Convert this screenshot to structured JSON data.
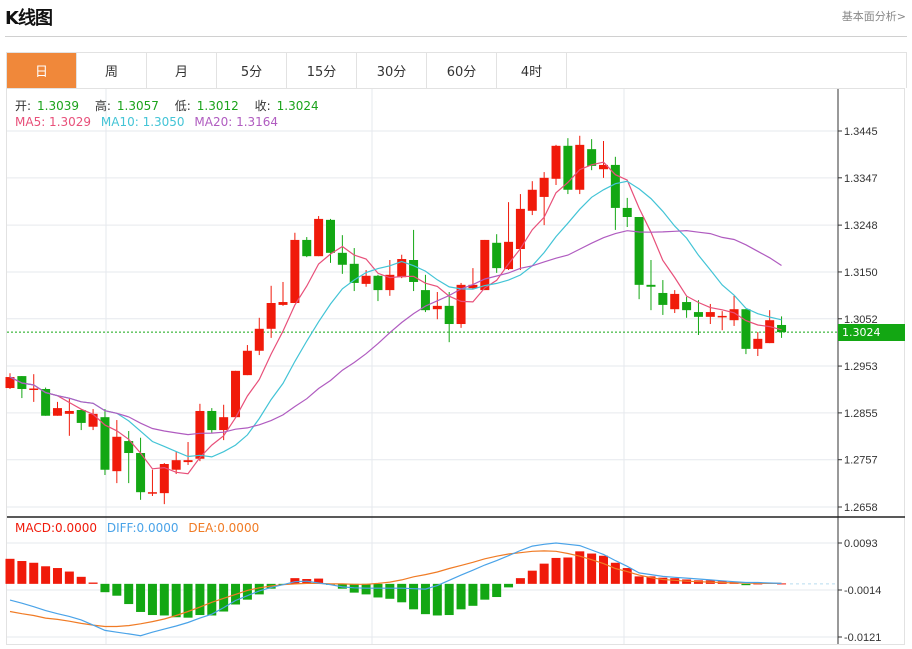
{
  "header": {
    "title": "K线图",
    "link": "基本面分析>"
  },
  "tabs": [
    {
      "label": "日",
      "active": true
    },
    {
      "label": "周"
    },
    {
      "label": "月"
    },
    {
      "label": "5分"
    },
    {
      "label": "15分"
    },
    {
      "label": "30分"
    },
    {
      "label": "60分"
    },
    {
      "label": "4时"
    }
  ],
  "ohlc_legend": {
    "open_label": "开:",
    "open": "1.3039",
    "high_label": "高:",
    "high": "1.3057",
    "low_label": "低:",
    "low": "1.3012",
    "close_label": "收:",
    "close": "1.3024"
  },
  "ma_legend": {
    "ma5": "MA5: 1.3029",
    "ma10": "MA10: 1.3050",
    "ma20": "MA20: 1.3164"
  },
  "macd_legend": {
    "macd": "MACD:0.0000",
    "diff": "DIFF:0.0000",
    "dea": "DEA:0.0000"
  },
  "current_price": "1.3024",
  "colors": {
    "up": "#f01a0a",
    "down": "#13a713",
    "ma5": "#e8507a",
    "ma10": "#43c4d6",
    "ma20": "#b05cc0",
    "diff": "#4aa3e8",
    "dea": "#f07b25",
    "active_tab": "#f0883a"
  },
  "chart_data": [
    {
      "type": "candlestick",
      "ylim": [
        1.2658,
        1.3445
      ],
      "yticks": [
        "1.3445",
        "1.3347",
        "1.3248",
        "1.3150",
        "1.3052",
        "1.2953",
        "1.2855",
        "1.2757",
        "1.2658"
      ],
      "grid": true,
      "ohlc": [
        [
          1.2907,
          1.2938,
          1.2905,
          1.293
        ],
        [
          1.2932,
          1.2932,
          1.2886,
          1.2905
        ],
        [
          1.2905,
          1.2936,
          1.2878,
          1.2906
        ],
        [
          1.2905,
          1.2908,
          1.2849,
          1.2849
        ],
        [
          1.2849,
          1.2878,
          1.2849,
          1.2865
        ],
        [
          1.2853,
          1.2886,
          1.2807,
          1.2859
        ],
        [
          1.2861,
          1.2863,
          1.2819,
          1.2834
        ],
        [
          1.2826,
          1.2863,
          1.2819,
          1.2853
        ],
        [
          1.2846,
          1.2863,
          1.2725,
          1.2736
        ],
        [
          1.2733,
          1.284,
          1.2708,
          1.2805
        ],
        [
          1.2796,
          1.2817,
          1.2708,
          1.2771
        ],
        [
          1.2771,
          1.2803,
          1.2673,
          1.2689
        ],
        [
          1.2687,
          1.2736,
          1.2681,
          1.2689
        ],
        [
          1.2687,
          1.275,
          1.2664,
          1.2748
        ],
        [
          1.2736,
          1.2773,
          1.2727,
          1.2756
        ],
        [
          1.2752,
          1.2794,
          1.2746,
          1.2756
        ],
        [
          1.2759,
          1.2874,
          1.2754,
          1.2859
        ],
        [
          1.2859,
          1.2865,
          1.2813,
          1.2819
        ],
        [
          1.2819,
          1.2872,
          1.2798,
          1.2846
        ],
        [
          1.2846,
          1.2943,
          1.2846,
          1.2943
        ],
        [
          1.2934,
          1.2997,
          1.2934,
          1.2985
        ],
        [
          1.2985,
          1.3054,
          1.2976,
          1.3031
        ],
        [
          1.3031,
          1.3121,
          1.3012,
          1.3085
        ],
        [
          1.3081,
          1.3129,
          1.3079,
          1.3087
        ],
        [
          1.3085,
          1.3232,
          1.3085,
          1.3217
        ],
        [
          1.3217,
          1.3223,
          1.3181,
          1.3183
        ],
        [
          1.3183,
          1.3267,
          1.3183,
          1.3261
        ],
        [
          1.3259,
          1.3261,
          1.3169,
          1.319
        ],
        [
          1.319,
          1.3227,
          1.3146,
          1.3165
        ],
        [
          1.3167,
          1.32,
          1.311,
          1.3127
        ],
        [
          1.3125,
          1.3154,
          1.3119,
          1.3142
        ],
        [
          1.3142,
          1.3144,
          1.3089,
          1.3112
        ],
        [
          1.3112,
          1.3175,
          1.31,
          1.3144
        ],
        [
          1.3139,
          1.3186,
          1.3137,
          1.3177
        ],
        [
          1.3175,
          1.3238,
          1.311,
          1.3129
        ],
        [
          1.3112,
          1.3144,
          1.3066,
          1.307
        ],
        [
          1.3072,
          1.3108,
          1.3051,
          1.3079
        ],
        [
          1.3079,
          1.3108,
          1.3003,
          1.3041
        ],
        [
          1.3041,
          1.3127,
          1.3033,
          1.3123
        ],
        [
          1.3116,
          1.3158,
          1.3114,
          1.3123
        ],
        [
          1.3112,
          1.3217,
          1.3112,
          1.3217
        ],
        [
          1.3211,
          1.3229,
          1.3148,
          1.3158
        ],
        [
          1.3156,
          1.3296,
          1.3154,
          1.3213
        ],
        [
          1.3198,
          1.3313,
          1.3154,
          1.3282
        ],
        [
          1.3278,
          1.334,
          1.3269,
          1.3322
        ],
        [
          1.3307,
          1.3359,
          1.3248,
          1.3347
        ],
        [
          1.3345,
          1.3416,
          1.3332,
          1.3414
        ],
        [
          1.3414,
          1.343,
          1.3313,
          1.3322
        ],
        [
          1.3322,
          1.3435,
          1.3313,
          1.3416
        ],
        [
          1.3407,
          1.3428,
          1.3363,
          1.3372
        ],
        [
          1.3365,
          1.3424,
          1.3347,
          1.3374
        ],
        [
          1.3374,
          1.3391,
          1.3238,
          1.3284
        ],
        [
          1.3284,
          1.3305,
          1.3244,
          1.3265
        ],
        [
          1.3265,
          1.3265,
          1.3093,
          1.3123
        ],
        [
          1.3123,
          1.3175,
          1.307,
          1.3119
        ],
        [
          1.3106,
          1.3133,
          1.306,
          1.3081
        ],
        [
          1.3072,
          1.3112,
          1.3064,
          1.3104
        ],
        [
          1.3087,
          1.3098,
          1.3054,
          1.307
        ],
        [
          1.3066,
          1.3091,
          1.3018,
          1.3056
        ],
        [
          1.3056,
          1.3083,
          1.3041,
          1.3066
        ],
        [
          1.3056,
          1.3068,
          1.3028,
          1.3058
        ],
        [
          1.3049,
          1.31,
          1.3037,
          1.3072
        ],
        [
          1.3072,
          1.3072,
          1.2978,
          1.2989
        ],
        [
          1.2989,
          1.3024,
          1.2974,
          1.301
        ],
        [
          1.3001,
          1.307,
          1.3001,
          1.3049
        ],
        [
          1.3039,
          1.3057,
          1.3012,
          1.3024
        ]
      ],
      "ma_periods": [
        5,
        10,
        20
      ]
    },
    {
      "type": "bar+line",
      "ylim": [
        -0.0121,
        0.0093
      ],
      "yticks": [
        "0.0093",
        "-0.0014",
        "-0.0121"
      ],
      "macd": [
        0.0057,
        0.0052,
        0.0048,
        0.004,
        0.0036,
        0.0028,
        0.0016,
        0.0003,
        -0.0019,
        -0.0027,
        -0.0046,
        -0.0064,
        -0.0071,
        -0.0072,
        -0.0076,
        -0.0077,
        -0.0071,
        -0.0072,
        -0.0063,
        -0.0047,
        -0.0036,
        -0.0024,
        -0.0011,
        -0.0001,
        0.0013,
        0.0011,
        0.0012,
        -0.0002,
        -0.0011,
        -0.002,
        -0.0024,
        -0.0031,
        -0.0034,
        -0.0042,
        -0.0058,
        -0.0069,
        -0.0072,
        -0.0071,
        -0.0058,
        -0.005,
        -0.0036,
        -0.003,
        -0.0008,
        0.0013,
        0.003,
        0.0046,
        0.0059,
        0.006,
        0.0074,
        0.0069,
        0.0064,
        0.0048,
        0.0036,
        0.0017,
        0.0017,
        0.0014,
        0.0013,
        0.001,
        0.0008,
        0.0008,
        0.0006,
        0.0004,
        -0.0003,
        0.0001,
        0.0002,
        0.0001
      ],
      "diff": [
        -0.0037,
        -0.0044,
        -0.0052,
        -0.0061,
        -0.0068,
        -0.0074,
        -0.0082,
        -0.0094,
        -0.0106,
        -0.011,
        -0.0114,
        -0.0118,
        -0.011,
        -0.0103,
        -0.0096,
        -0.0088,
        -0.0078,
        -0.0069,
        -0.0054,
        -0.0038,
        -0.0027,
        -0.0016,
        -0.0008,
        -0.0002,
        0.0005,
        0.0006,
        0.0002,
        -0.0002,
        -0.0007,
        -0.0009,
        -0.001,
        -0.001,
        -0.001,
        -0.001,
        -0.0011,
        -0.0012,
        -0.0004,
        0.0008,
        0.002,
        0.0031,
        0.0043,
        0.0053,
        0.0064,
        0.0076,
        0.0086,
        0.009,
        0.0093,
        0.009,
        0.0087,
        0.0077,
        0.0067,
        0.0053,
        0.004,
        0.0025,
        0.0021,
        0.0017,
        0.0015,
        0.0013,
        0.0011,
        0.0009,
        0.0007,
        0.0005,
        0.0003,
        0.0003,
        0.0002,
        0.0001
      ],
      "dea": [
        -0.0063,
        -0.0068,
        -0.0072,
        -0.0078,
        -0.0081,
        -0.0085,
        -0.009,
        -0.0094,
        -0.0097,
        -0.0097,
        -0.0095,
        -0.0091,
        -0.0086,
        -0.008,
        -0.0072,
        -0.0063,
        -0.0053,
        -0.0042,
        -0.0033,
        -0.0024,
        -0.0015,
        -0.0009,
        -0.0005,
        -0.0002,
        0.0,
        0.0001,
        0.0001,
        0.0,
        0.0,
        -0.0001,
        -0.0001,
        0.0001,
        0.0004,
        0.0009,
        0.0016,
        0.0021,
        0.0027,
        0.0035,
        0.0042,
        0.0049,
        0.0057,
        0.0063,
        0.0068,
        0.0071,
        0.0074,
        0.0075,
        0.0074,
        0.0069,
        0.0063,
        0.0055,
        0.0046,
        0.0035,
        0.0028,
        0.002,
        0.0014,
        0.001,
        0.0008,
        0.0006,
        0.0005,
        0.0004,
        0.0003,
        0.0002,
        0.0002,
        0.0001,
        0.0001,
        0.0001
      ]
    }
  ]
}
